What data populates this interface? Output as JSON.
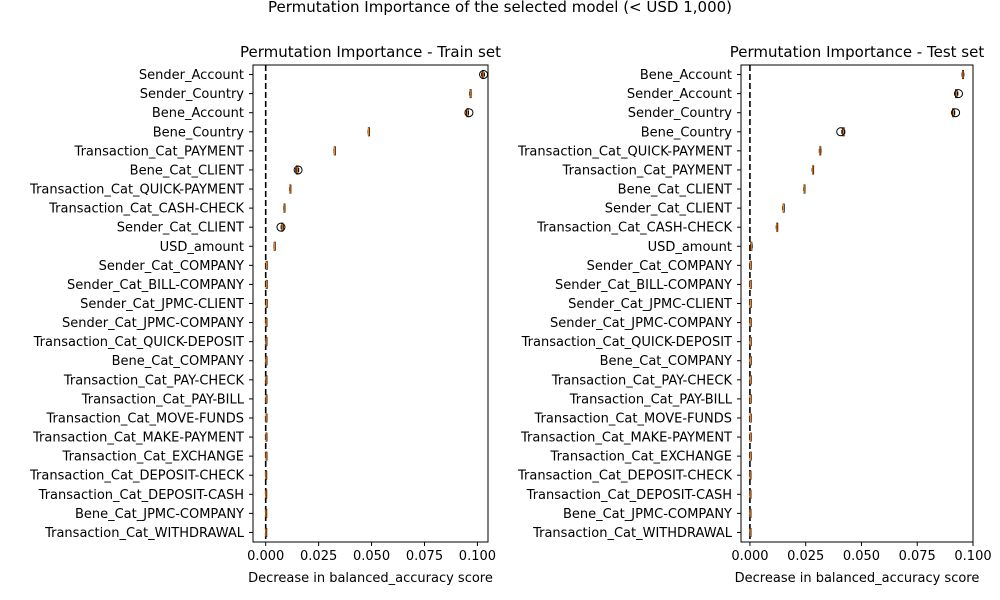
{
  "suptitle": "Permutation Importance of the selected model (< USD 1,000)",
  "chart_data": [
    {
      "type": "boxplot",
      "orientation": "horizontal",
      "title": "Permutation Importance - Train set",
      "xlabel": "Decrease in balanced_accuracy score",
      "ylabel": "",
      "xlim": [
        -0.006,
        0.105
      ],
      "xticks": [
        0.0,
        0.025,
        0.05,
        0.075,
        0.1
      ],
      "xtick_labels": [
        "0.000",
        "0.025",
        "0.050",
        "0.075",
        "0.100"
      ],
      "reference_line": {
        "x": 0.0,
        "style": "dashed"
      },
      "grid": false,
      "categories": [
        "Sender_Account",
        "Sender_Country",
        "Bene_Account",
        "Bene_Country",
        "Transaction_Cat_PAYMENT",
        "Bene_Cat_CLIENT",
        "Transaction_Cat_QUICK-PAYMENT",
        "Transaction_Cat_CASH-CHECK",
        "Sender_Cat_CLIENT",
        "USD_amount",
        "Sender_Cat_COMPANY",
        "Sender_Cat_BILL-COMPANY",
        "Sender_Cat_JPMC-CLIENT",
        "Sender_Cat_JPMC-COMPANY",
        "Transaction_Cat_QUICK-DEPOSIT",
        "Bene_Cat_COMPANY",
        "Transaction_Cat_PAY-CHECK",
        "Transaction_Cat_PAY-BILL",
        "Transaction_Cat_MOVE-FUNDS",
        "Transaction_Cat_MAKE-PAYMENT",
        "Transaction_Cat_EXCHANGE",
        "Transaction_Cat_DEPOSIT-CHECK",
        "Transaction_Cat_DEPOSIT-CASH",
        "Bene_Cat_JPMC-COMPANY",
        "Transaction_Cat_WITHDRAWAL"
      ],
      "values": [
        {
          "median": 0.1027,
          "q1": 0.1024,
          "q3": 0.1029,
          "whisker_low": 0.102,
          "whisker_high": 0.1033,
          "outliers": [
            0.1029
          ]
        },
        {
          "median": 0.0966,
          "q1": 0.0965,
          "q3": 0.0968,
          "whisker_low": 0.0963,
          "whisker_high": 0.097,
          "outliers": []
        },
        {
          "median": 0.0953,
          "q1": 0.0951,
          "q3": 0.0955,
          "whisker_low": 0.0948,
          "whisker_high": 0.0958,
          "outliers": [
            0.096
          ]
        },
        {
          "median": 0.0486,
          "q1": 0.0485,
          "q3": 0.0487,
          "whisker_low": 0.0484,
          "whisker_high": 0.0488,
          "outliers": []
        },
        {
          "median": 0.0325,
          "q1": 0.0324,
          "q3": 0.0326,
          "whisker_low": 0.0323,
          "whisker_high": 0.0327,
          "outliers": []
        },
        {
          "median": 0.0149,
          "q1": 0.0146,
          "q3": 0.0152,
          "whisker_low": 0.0142,
          "whisker_high": 0.0156,
          "outliers": [
            0.0153
          ]
        },
        {
          "median": 0.0115,
          "q1": 0.0114,
          "q3": 0.0116,
          "whisker_low": 0.0113,
          "whisker_high": 0.0117,
          "outliers": []
        },
        {
          "median": 0.0087,
          "q1": 0.0086,
          "q3": 0.0088,
          "whisker_low": 0.0085,
          "whisker_high": 0.0089,
          "outliers": []
        },
        {
          "median": 0.0078,
          "q1": 0.0076,
          "q3": 0.008,
          "whisker_low": 0.0073,
          "whisker_high": 0.0083,
          "outliers": [
            0.0072
          ]
        },
        {
          "median": 0.0041,
          "q1": 0.004,
          "q3": 0.0042,
          "whisker_low": 0.0039,
          "whisker_high": 0.0043,
          "outliers": []
        },
        {
          "median": 0.0003,
          "q1": 0.0002,
          "q3": 0.0004,
          "whisker_low": 0.0001,
          "whisker_high": 0.0005,
          "outliers": []
        },
        {
          "median": 0.0003,
          "q1": 0.0002,
          "q3": 0.0004,
          "whisker_low": 0.0001,
          "whisker_high": 0.0005,
          "outliers": []
        },
        {
          "median": 0.0003,
          "q1": 0.0002,
          "q3": 0.0004,
          "whisker_low": 0.0001,
          "whisker_high": 0.0005,
          "outliers": []
        },
        {
          "median": 0.0002,
          "q1": 0.0001,
          "q3": 0.0003,
          "whisker_low": 0.0,
          "whisker_high": 0.0004,
          "outliers": []
        },
        {
          "median": 0.0002,
          "q1": 0.0001,
          "q3": 0.0003,
          "whisker_low": 0.0,
          "whisker_high": 0.0004,
          "outliers": []
        },
        {
          "median": 0.0002,
          "q1": 0.0001,
          "q3": 0.0003,
          "whisker_low": 0.0,
          "whisker_high": 0.0004,
          "outliers": []
        },
        {
          "median": 0.0002,
          "q1": 0.0001,
          "q3": 0.0003,
          "whisker_low": 0.0,
          "whisker_high": 0.0004,
          "outliers": []
        },
        {
          "median": 0.0002,
          "q1": 0.0001,
          "q3": 0.0003,
          "whisker_low": 0.0,
          "whisker_high": 0.0004,
          "outliers": []
        },
        {
          "median": 0.0002,
          "q1": 0.0001,
          "q3": 0.0003,
          "whisker_low": 0.0,
          "whisker_high": 0.0004,
          "outliers": []
        },
        {
          "median": 0.0002,
          "q1": 0.0001,
          "q3": 0.0003,
          "whisker_low": 0.0,
          "whisker_high": 0.0004,
          "outliers": []
        },
        {
          "median": 0.0002,
          "q1": 0.0001,
          "q3": 0.0003,
          "whisker_low": 0.0,
          "whisker_high": 0.0004,
          "outliers": []
        },
        {
          "median": 0.0001,
          "q1": 0.0,
          "q3": 0.0002,
          "whisker_low": -0.0001,
          "whisker_high": 0.0003,
          "outliers": []
        },
        {
          "median": 0.0001,
          "q1": 0.0,
          "q3": 0.0002,
          "whisker_low": -0.0001,
          "whisker_high": 0.0003,
          "outliers": []
        },
        {
          "median": 0.0001,
          "q1": 0.0,
          "q3": 0.0002,
          "whisker_low": -0.0001,
          "whisker_high": 0.0003,
          "outliers": []
        },
        {
          "median": 0.0001,
          "q1": 0.0,
          "q3": 0.0002,
          "whisker_low": -0.0001,
          "whisker_high": 0.0003,
          "outliers": []
        }
      ]
    },
    {
      "type": "boxplot",
      "orientation": "horizontal",
      "title": "Permutation Importance - Test set",
      "xlabel": "Decrease in balanced_accuracy score",
      "ylabel": "",
      "xlim": [
        -0.004,
        0.1
      ],
      "xticks": [
        0.0,
        0.025,
        0.05,
        0.075,
        0.1
      ],
      "xtick_labels": [
        "0.000",
        "0.025",
        "0.050",
        "0.075",
        "0.100"
      ],
      "reference_line": {
        "x": 0.0,
        "style": "dashed"
      },
      "grid": false,
      "categories": [
        "Bene_Account",
        "Sender_Account",
        "Sender_Country",
        "Bene_Country",
        "Transaction_Cat_QUICK-PAYMENT",
        "Transaction_Cat_PAYMENT",
        "Bene_Cat_CLIENT",
        "Sender_Cat_CLIENT",
        "Transaction_Cat_CASH-CHECK",
        "USD_amount",
        "Sender_Cat_COMPANY",
        "Sender_Cat_BILL-COMPANY",
        "Sender_Cat_JPMC-CLIENT",
        "Sender_Cat_JPMC-COMPANY",
        "Transaction_Cat_QUICK-DEPOSIT",
        "Bene_Cat_COMPANY",
        "Transaction_Cat_PAY-CHECK",
        "Transaction_Cat_PAY-BILL",
        "Transaction_Cat_MOVE-FUNDS",
        "Transaction_Cat_MAKE-PAYMENT",
        "Transaction_Cat_EXCHANGE",
        "Transaction_Cat_DEPOSIT-CHECK",
        "Transaction_Cat_DEPOSIT-CASH",
        "Bene_Cat_JPMC-COMPANY",
        "Transaction_Cat_WITHDRAWAL"
      ],
      "values": [
        {
          "median": 0.0955,
          "q1": 0.0953,
          "q3": 0.0957,
          "whisker_low": 0.0951,
          "whisker_high": 0.0959,
          "outliers": []
        },
        {
          "median": 0.0925,
          "q1": 0.0922,
          "q3": 0.0928,
          "whisker_low": 0.0919,
          "whisker_high": 0.0932,
          "outliers": [
            0.0935
          ]
        },
        {
          "median": 0.0912,
          "q1": 0.0909,
          "q3": 0.0915,
          "whisker_low": 0.0905,
          "whisker_high": 0.0918,
          "outliers": [
            0.0922
          ]
        },
        {
          "median": 0.0419,
          "q1": 0.0416,
          "q3": 0.0422,
          "whisker_low": 0.0412,
          "whisker_high": 0.0425,
          "outliers": [
            0.0407
          ]
        },
        {
          "median": 0.0314,
          "q1": 0.0313,
          "q3": 0.0316,
          "whisker_low": 0.0311,
          "whisker_high": 0.0318,
          "outliers": []
        },
        {
          "median": 0.0282,
          "q1": 0.0281,
          "q3": 0.0284,
          "whisker_low": 0.0279,
          "whisker_high": 0.0285,
          "outliers": []
        },
        {
          "median": 0.0243,
          "q1": 0.0242,
          "q3": 0.0244,
          "whisker_low": 0.0241,
          "whisker_high": 0.0245,
          "outliers": []
        },
        {
          "median": 0.015,
          "q1": 0.0149,
          "q3": 0.0152,
          "whisker_low": 0.0147,
          "whisker_high": 0.0153,
          "outliers": []
        },
        {
          "median": 0.0121,
          "q1": 0.012,
          "q3": 0.0123,
          "whisker_low": 0.0118,
          "whisker_high": 0.0124,
          "outliers": []
        },
        {
          "median": 0.0006,
          "q1": 0.0004,
          "q3": 0.0008,
          "whisker_low": 0.0002,
          "whisker_high": 0.001,
          "outliers": []
        },
        {
          "median": 0.0002,
          "q1": 0.0001,
          "q3": 0.0003,
          "whisker_low": 0.0,
          "whisker_high": 0.0004,
          "outliers": []
        },
        {
          "median": 0.0002,
          "q1": 0.0001,
          "q3": 0.0003,
          "whisker_low": 0.0,
          "whisker_high": 0.0004,
          "outliers": []
        },
        {
          "median": 0.0002,
          "q1": 0.0001,
          "q3": 0.0003,
          "whisker_low": 0.0,
          "whisker_high": 0.0004,
          "outliers": []
        },
        {
          "median": 0.0002,
          "q1": 0.0001,
          "q3": 0.0003,
          "whisker_low": 0.0,
          "whisker_high": 0.0004,
          "outliers": []
        },
        {
          "median": 0.0002,
          "q1": 0.0001,
          "q3": 0.0003,
          "whisker_low": 0.0,
          "whisker_high": 0.0004,
          "outliers": []
        },
        {
          "median": 0.0002,
          "q1": 0.0001,
          "q3": 0.0003,
          "whisker_low": 0.0,
          "whisker_high": 0.0004,
          "outliers": []
        },
        {
          "median": 0.0002,
          "q1": 0.0001,
          "q3": 0.0003,
          "whisker_low": 0.0,
          "whisker_high": 0.0004,
          "outliers": []
        },
        {
          "median": 0.0002,
          "q1": 0.0001,
          "q3": 0.0003,
          "whisker_low": 0.0,
          "whisker_high": 0.0004,
          "outliers": []
        },
        {
          "median": 0.0002,
          "q1": 0.0001,
          "q3": 0.0003,
          "whisker_low": 0.0,
          "whisker_high": 0.0004,
          "outliers": []
        },
        {
          "median": 0.0002,
          "q1": 0.0001,
          "q3": 0.0003,
          "whisker_low": 0.0,
          "whisker_high": 0.0004,
          "outliers": []
        },
        {
          "median": 0.0002,
          "q1": 0.0001,
          "q3": 0.0003,
          "whisker_low": 0.0,
          "whisker_high": 0.0004,
          "outliers": []
        },
        {
          "median": 0.0001,
          "q1": 0.0,
          "q3": 0.0002,
          "whisker_low": -0.0001,
          "whisker_high": 0.0003,
          "outliers": []
        },
        {
          "median": 0.0001,
          "q1": 0.0,
          "q3": 0.0002,
          "whisker_low": -0.0001,
          "whisker_high": 0.0003,
          "outliers": []
        },
        {
          "median": 0.0001,
          "q1": 0.0,
          "q3": 0.0002,
          "whisker_low": -0.0001,
          "whisker_high": 0.0003,
          "outliers": []
        },
        {
          "median": 0.0001,
          "q1": 0.0,
          "q3": 0.0002,
          "whisker_low": -0.0001,
          "whisker_high": 0.0003,
          "outliers": []
        }
      ]
    }
  ],
  "colors": {
    "axis": "#000000",
    "box_edge": "#000000",
    "median": "#ff7f0e",
    "reference_line": "#000000",
    "background": "#ffffff"
  }
}
